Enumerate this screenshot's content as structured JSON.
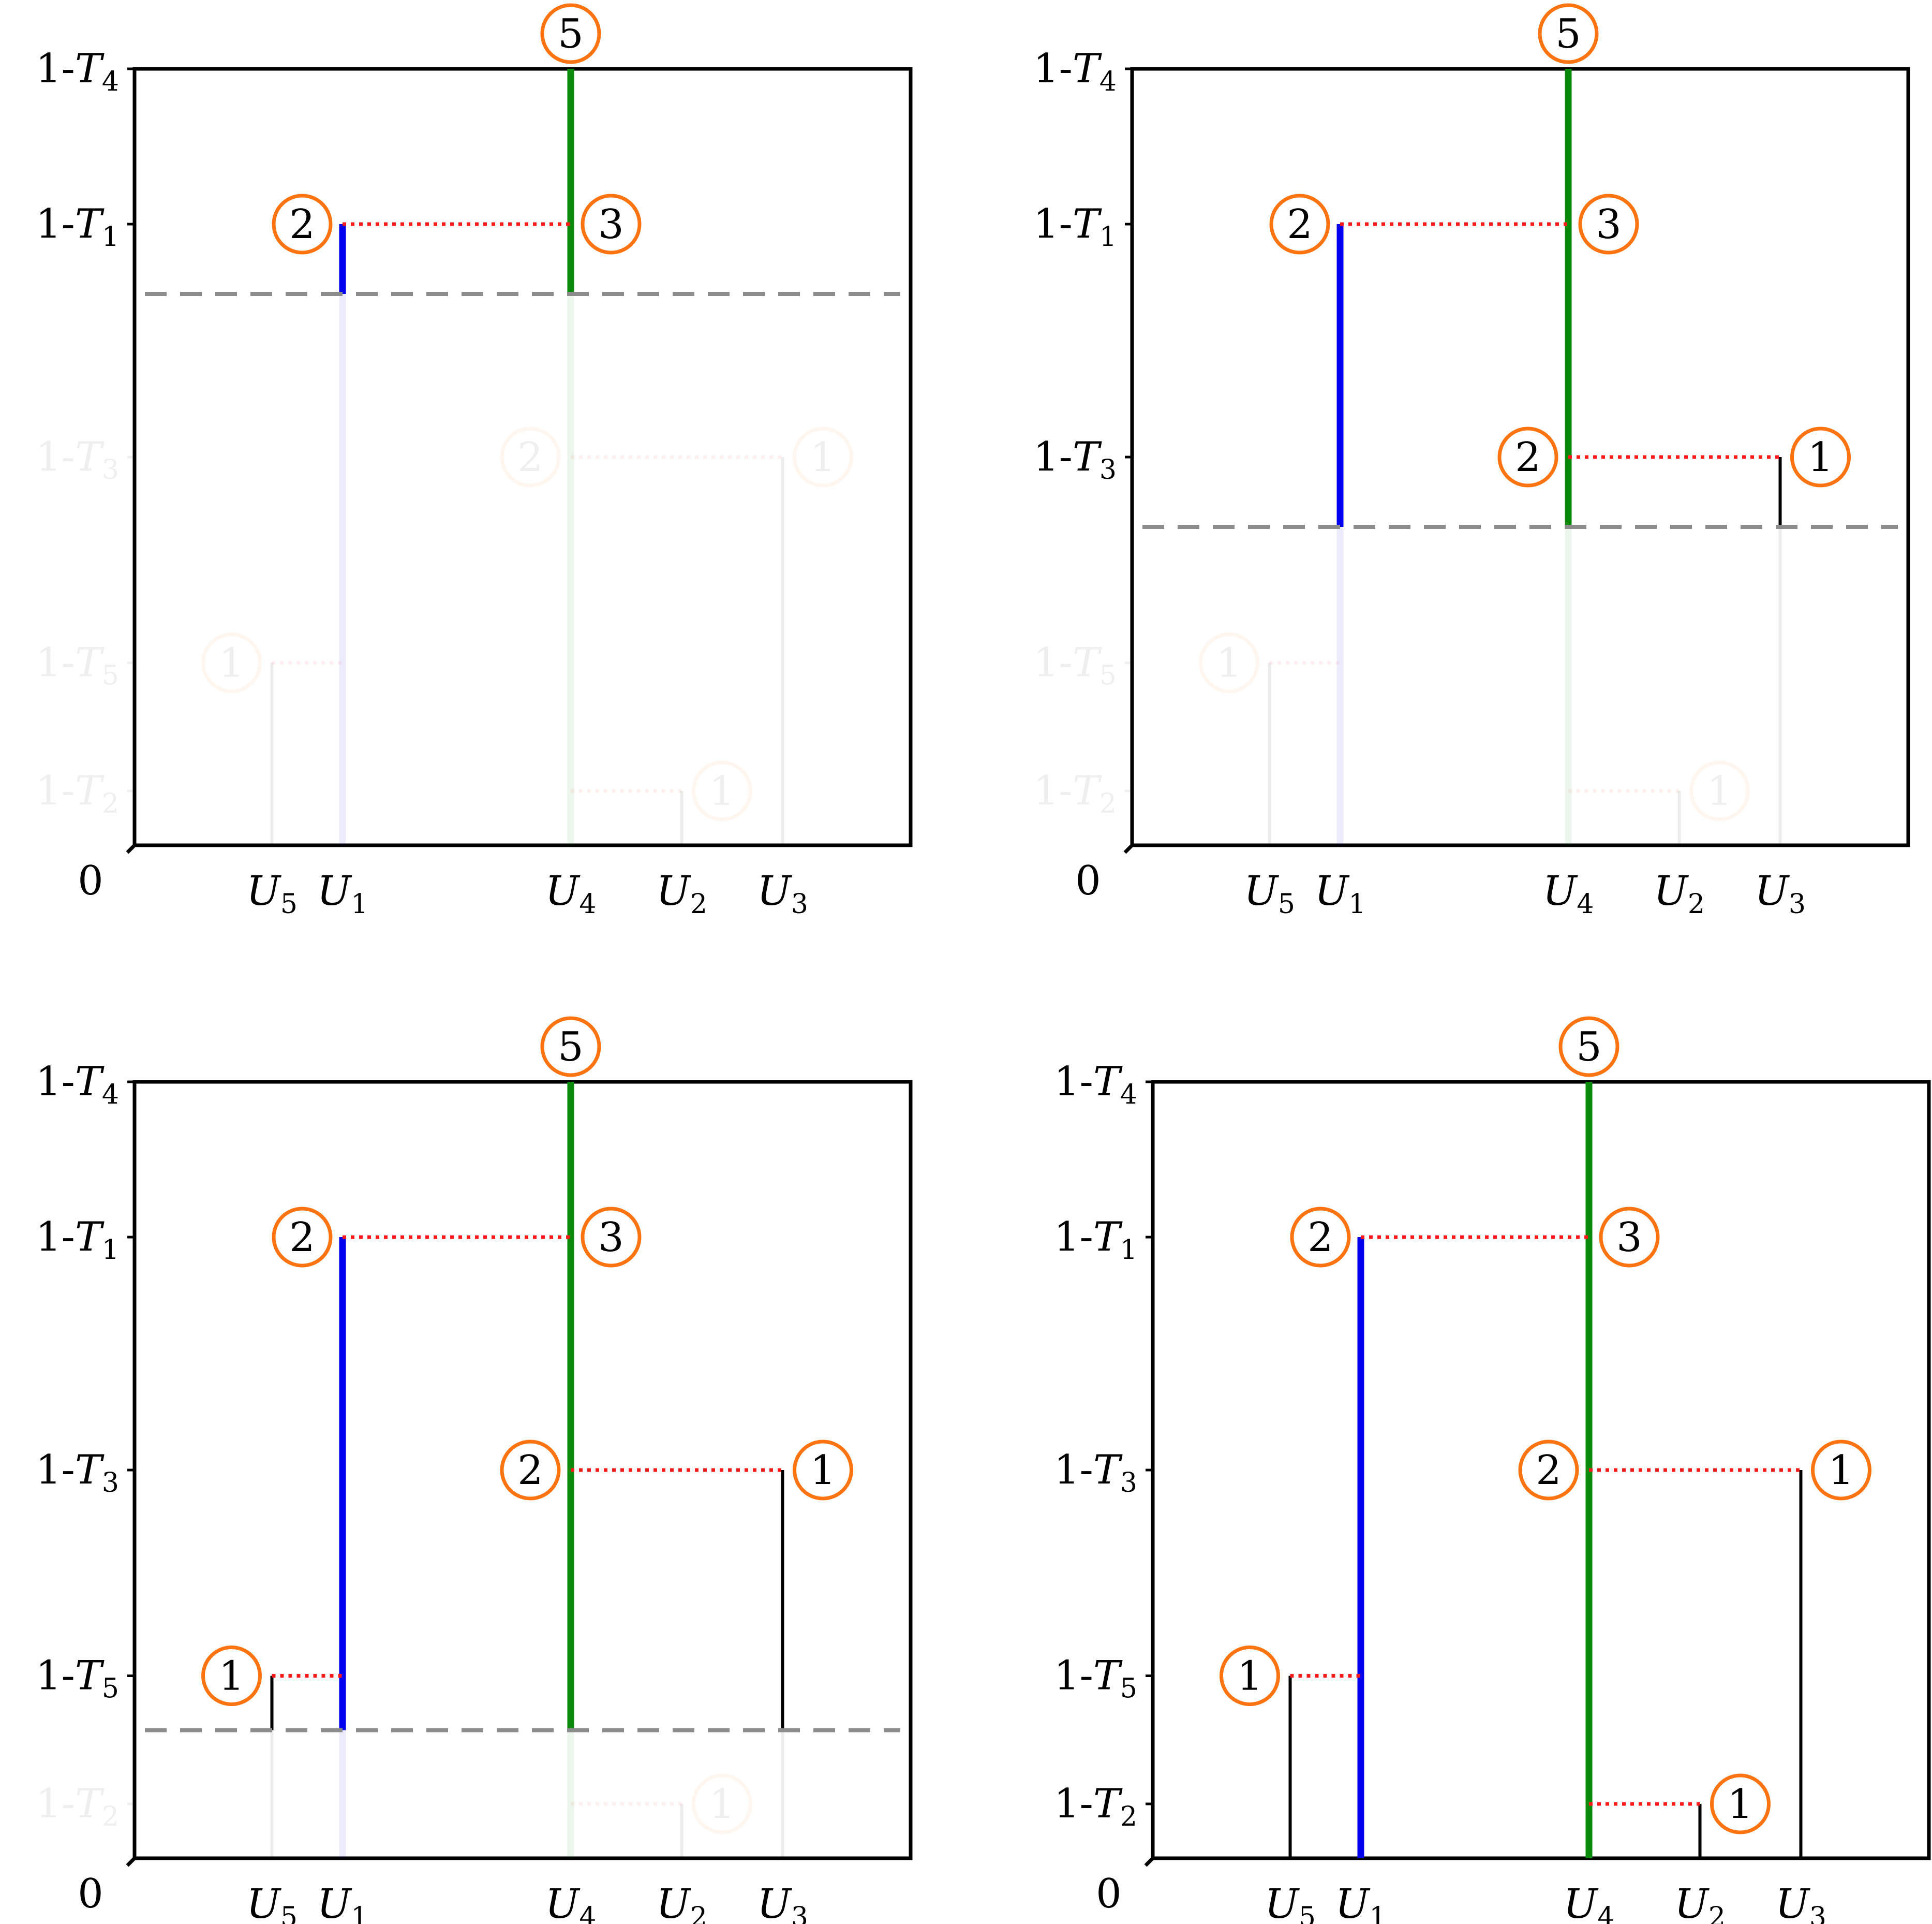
{
  "figure": {
    "colors": {
      "frame": "#000000",
      "blue_branch": "#0000ee",
      "green_branch": "#0a8a0a",
      "black_branch": "#000000",
      "link_dotted": "#ff1a1a",
      "threshold_dashed": "#8c8c8c",
      "badge_ring": "#ff7410"
    },
    "origin_label": "0",
    "y_ticks": [
      {
        "id": "T4",
        "prefix": "1-",
        "var": "T",
        "sub": "4",
        "level": 1.0
      },
      {
        "id": "T1",
        "prefix": "1-",
        "var": "T",
        "sub": "1",
        "level": 0.8
      },
      {
        "id": "T3",
        "prefix": "1-",
        "var": "T",
        "sub": "3",
        "level": 0.5
      },
      {
        "id": "T5",
        "prefix": "1-",
        "var": "T",
        "sub": "5",
        "level": 0.235
      },
      {
        "id": "T2",
        "prefix": "1-",
        "var": "T",
        "sub": "2",
        "level": 0.07
      }
    ],
    "x_ticks": [
      {
        "id": "U5",
        "var": "U",
        "sub": "5",
        "pos": 0.177
      },
      {
        "id": "U1",
        "var": "U",
        "sub": "1",
        "pos": 0.268
      },
      {
        "id": "U4",
        "var": "U",
        "sub": "4",
        "pos": 0.562
      },
      {
        "id": "U2",
        "var": "U",
        "sub": "2",
        "pos": 0.705
      },
      {
        "id": "U3",
        "var": "U",
        "sub": "3",
        "pos": 0.835
      }
    ],
    "stems": [
      {
        "id": "U5",
        "top": 0.235,
        "color": "black_branch",
        "width": "thin"
      },
      {
        "id": "U1",
        "top": 0.8,
        "color": "blue_branch",
        "width": "thick"
      },
      {
        "id": "U4",
        "top": 1.0,
        "color": "green_branch",
        "width": "thick"
      },
      {
        "id": "U2",
        "top": 0.07,
        "color": "black_branch",
        "width": "thin"
      },
      {
        "id": "U3",
        "top": 0.5,
        "color": "black_branch",
        "width": "thin"
      }
    ],
    "links": [
      {
        "level": 0.8,
        "from": "U1",
        "to": "U4"
      },
      {
        "level": 0.5,
        "from": "U4",
        "to": "U3"
      },
      {
        "level": 0.235,
        "from": "U5",
        "to": "U1"
      },
      {
        "level": 0.07,
        "from": "U4",
        "to": "U2"
      }
    ],
    "badges": [
      {
        "label": "5",
        "anchor": "U4",
        "level": 1.0,
        "side": "top"
      },
      {
        "label": "2",
        "anchor": "U1",
        "level": 0.8,
        "side": "left"
      },
      {
        "label": "3",
        "anchor": "U4",
        "level": 0.8,
        "side": "right"
      },
      {
        "label": "2",
        "anchor": "U4",
        "level": 0.5,
        "side": "left"
      },
      {
        "label": "1",
        "anchor": "U3",
        "level": 0.5,
        "side": "right"
      },
      {
        "label": "1",
        "anchor": "U5",
        "level": 0.235,
        "side": "left"
      },
      {
        "label": "1",
        "anchor": "U2",
        "level": 0.07,
        "side": "right"
      }
    ]
  },
  "panels": [
    {
      "name": "panel-top-left",
      "threshold": 0.71
    },
    {
      "name": "panel-top-right",
      "threshold": 0.41
    },
    {
      "name": "panel-bottom-left",
      "threshold": 0.165
    },
    {
      "name": "panel-bottom-right",
      "threshold": null
    }
  ]
}
